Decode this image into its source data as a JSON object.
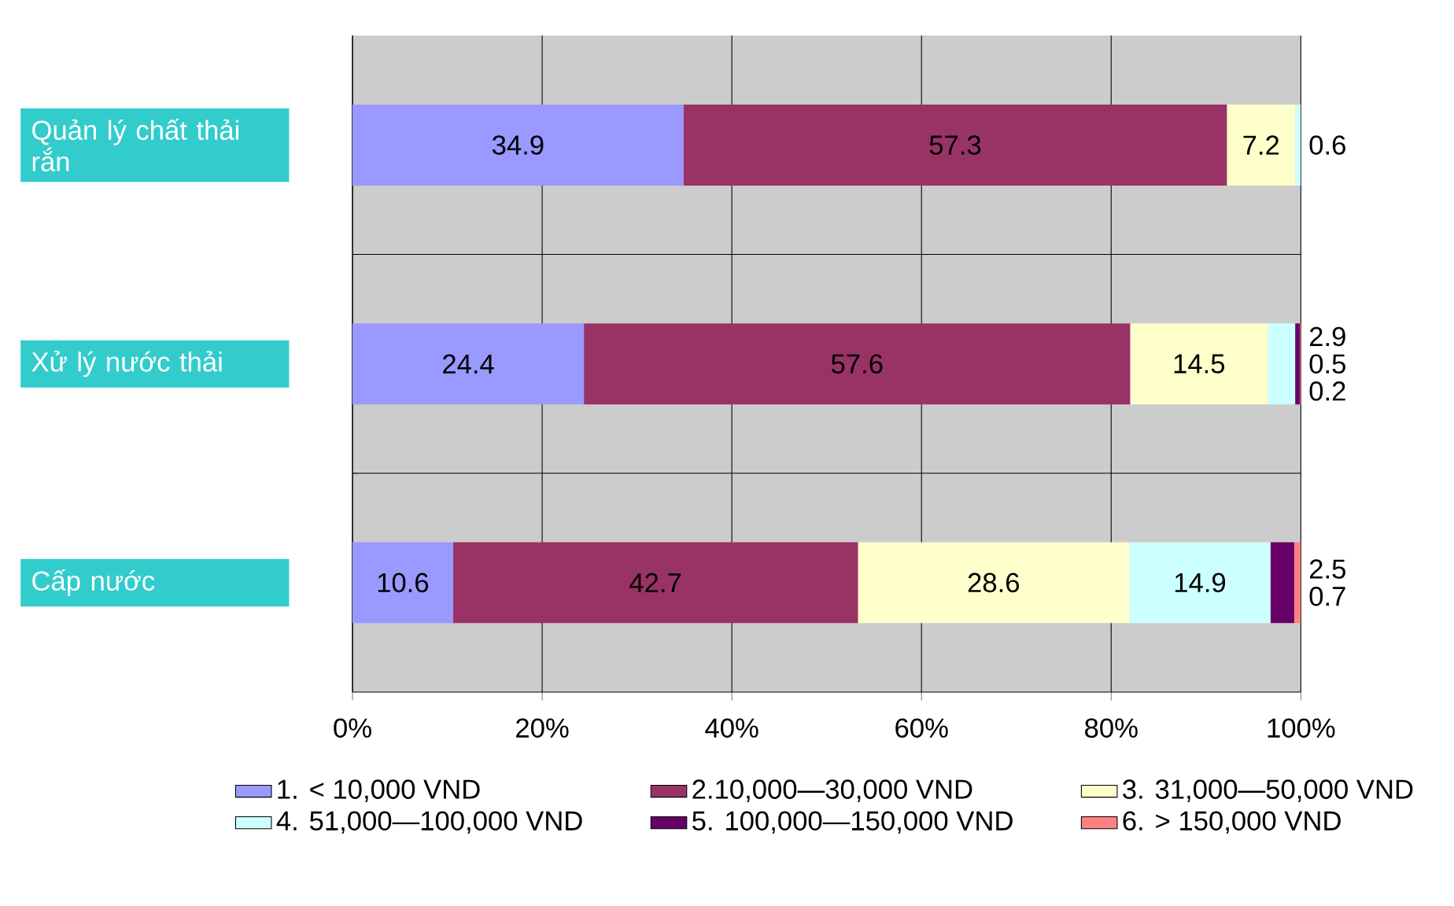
{
  "chart_data": {
    "type": "bar",
    "orientation": "horizontal",
    "stacked": true,
    "categories": [
      "Quản lý chất thải rắn",
      "Xử lý nước thải",
      "Cấp nước"
    ],
    "series": [
      {
        "name": "1. < 10,000 VND",
        "color": "#9999ff",
        "values": [
          34.9,
          24.4,
          10.6
        ]
      },
      {
        "name": "2.10,000—30,000 VND",
        "color": "#993366",
        "values": [
          57.3,
          57.6,
          42.7
        ]
      },
      {
        "name": "3. 31,000—50,000 VND",
        "color": "#ffffcc",
        "values": [
          7.2,
          14.5,
          28.6
        ]
      },
      {
        "name": "4. 51,000—100,000 VND",
        "color": "#ccffff",
        "values": [
          0.6,
          2.9,
          14.9
        ]
      },
      {
        "name": "5. 100,000—150,000 VND",
        "color": "#660066",
        "values": [
          null,
          0.5,
          2.5
        ]
      },
      {
        "name": "6. > 150,000 VND",
        "color": "#ff8080",
        "values": [
          null,
          0.2,
          0.7
        ]
      }
    ],
    "xlim": [
      0,
      100
    ],
    "xticks": [
      {
        "value": 0,
        "label": "0%"
      },
      {
        "value": 20,
        "label": "20%"
      },
      {
        "value": 40,
        "label": "40%"
      },
      {
        "value": 60,
        "label": "60%"
      },
      {
        "value": 80,
        "label": "80%"
      },
      {
        "value": 100,
        "label": "100%"
      }
    ],
    "grid": true,
    "legend": "bottom",
    "data_labels": true
  }
}
